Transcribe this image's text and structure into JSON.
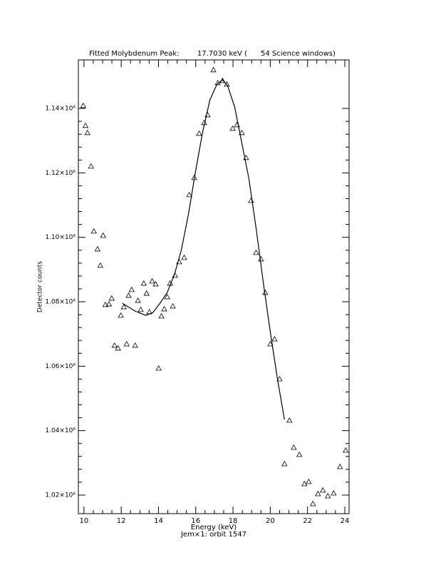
{
  "chart_data": {
    "type": "scatter",
    "title": "Fitted Molybdenum Peak:        17.7030 keV (      54 Science windows)",
    "x_label": "Energy (keV)",
    "subtitle": "Jem×1: orbit 1547",
    "y_label": "Detector counts",
    "xlim": [
      9.7,
      24.23
    ],
    "ylim": [
      1014240,
      1155060
    ],
    "xticks": [
      10,
      12,
      14,
      16,
      18,
      20,
      22,
      24
    ],
    "yticks": [
      {
        "value": 1020000,
        "label": "1.02×10⁶"
      },
      {
        "value": 1040000,
        "label": "1.04×10⁶"
      },
      {
        "value": 1060000,
        "label": "1.06×10⁶"
      },
      {
        "value": 1080000,
        "label": "1.08×10⁶"
      },
      {
        "value": 1100000,
        "label": "1.10×10⁶"
      },
      {
        "value": 1120000,
        "label": "1.12×10⁶"
      },
      {
        "value": 1140000,
        "label": "1.14×10⁶"
      }
    ],
    "series": [
      {
        "marker": "triangle",
        "color": "#000000",
        "x": [
          9.96,
          10.08,
          10.19,
          10.38,
          10.53,
          10.73,
          11.03,
          10.88,
          11.15,
          11.34,
          11.49,
          11.64,
          11.83,
          11.98,
          12.14,
          12.29,
          12.4,
          12.56,
          12.75,
          12.9,
          13.05,
          13.21,
          13.36,
          13.51,
          13.66,
          13.85,
          14.01,
          14.16,
          14.31,
          14.47,
          14.62,
          14.77,
          14.89,
          15.11,
          15.38,
          15.65,
          15.92,
          16.18,
          16.45,
          16.64,
          16.95,
          17.18,
          17.44,
          17.67,
          17.98,
          18.21,
          18.47,
          18.7,
          18.97,
          19.24,
          19.5,
          19.73,
          20.0,
          20.23,
          20.5,
          20.76,
          21.03,
          21.26,
          21.56,
          21.83,
          22.06,
          22.29,
          22.56,
          22.82,
          23.09,
          23.4,
          23.74,
          24.05
        ],
        "values": [
          1140886,
          1134684,
          1132470,
          1122060,
          1101900,
          1096360,
          1100570,
          1091270,
          1079090,
          1079310,
          1081080,
          1066460,
          1065580,
          1075770,
          1078420,
          1066900,
          1081960,
          1083740,
          1066460,
          1080410,
          1077540,
          1085730,
          1082630,
          1076870,
          1086400,
          1085510,
          1059370,
          1075550,
          1077760,
          1081520,
          1085730,
          1078640,
          1088170,
          1092380,
          1093710,
          1113200,
          1118510,
          1132250,
          1135570,
          1138010,
          1151960,
          1147970,
          1148640,
          1147530,
          1133800,
          1134910,
          1132470,
          1124720,
          1111430,
          1095260,
          1093260,
          1082850,
          1066900,
          1068450,
          1056050,
          1029690,
          1043200,
          1034790,
          1032570,
          1023490,
          1024160,
          1017290,
          1020390,
          1021500,
          1019730,
          1020610,
          1028810,
          1033900
        ]
      },
      {
        "marker": "line",
        "color": "#000000",
        "x": [
          12.06,
          12.75,
          13.32,
          13.7,
          14.08,
          14.47,
          14.85,
          15.23,
          15.61,
          15.99,
          16.37,
          16.76,
          17.14,
          17.44,
          17.71,
          18.09,
          18.47,
          18.85,
          19.24,
          19.62,
          20.0,
          20.38,
          20.76
        ],
        "values": [
          1079530,
          1077090,
          1075770,
          1076650,
          1079530,
          1082850,
          1088390,
          1096140,
          1107220,
          1120510,
          1132690,
          1142660,
          1147530,
          1148860,
          1147090,
          1140440,
          1129370,
          1118290,
          1102790,
          1086180,
          1070670,
          1056270,
          1043430
        ]
      }
    ]
  }
}
